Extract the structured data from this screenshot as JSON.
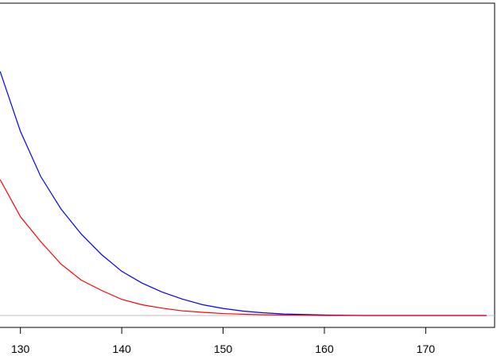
{
  "chart_data": {
    "type": "line",
    "title": "",
    "xlabel": "",
    "ylabel": "",
    "xlim": [
      127.2,
      176.8
    ],
    "ylim": [
      0,
      1
    ],
    "x_ticks": [
      "130",
      "140",
      "150",
      "160",
      "170"
    ],
    "x_tick_values": [
      130,
      140,
      150,
      160,
      170
    ],
    "baseline": 0,
    "grid": false,
    "legend": "none",
    "series": [
      {
        "color": "#0000ff",
        "x": [
          128,
          130,
          132,
          134,
          136,
          138,
          140,
          142,
          144,
          146,
          148,
          150,
          152,
          154,
          156,
          158,
          160,
          162,
          164,
          166,
          168,
          170,
          172,
          174,
          176
        ],
        "y": [
          1.0,
          0.755,
          0.57,
          0.437,
          0.334,
          0.25,
          0.181,
          0.133,
          0.096,
          0.067,
          0.044,
          0.029,
          0.018,
          0.011,
          0.006,
          0.004,
          0.002,
          0.001,
          0.0,
          0.0,
          0.0,
          0.0,
          0.0,
          0.0,
          0.0
        ]
      },
      {
        "color": "#ff0000",
        "x": [
          128,
          130,
          132,
          134,
          136,
          138,
          140,
          142,
          144,
          146,
          148,
          150,
          152,
          154,
          156,
          158,
          160,
          162,
          164,
          166,
          168,
          170,
          172,
          174,
          176
        ],
        "y": [
          0.557,
          0.405,
          0.303,
          0.211,
          0.145,
          0.103,
          0.066,
          0.044,
          0.03,
          0.019,
          0.013,
          0.008,
          0.005,
          0.003,
          0.002,
          0.001,
          0.0,
          0.0,
          0.0,
          0.0,
          0.0,
          0.0,
          0.0,
          0.0,
          0.0
        ]
      }
    ]
  },
  "colors": {
    "frame": "#000000",
    "baseline": "#bebebe"
  }
}
